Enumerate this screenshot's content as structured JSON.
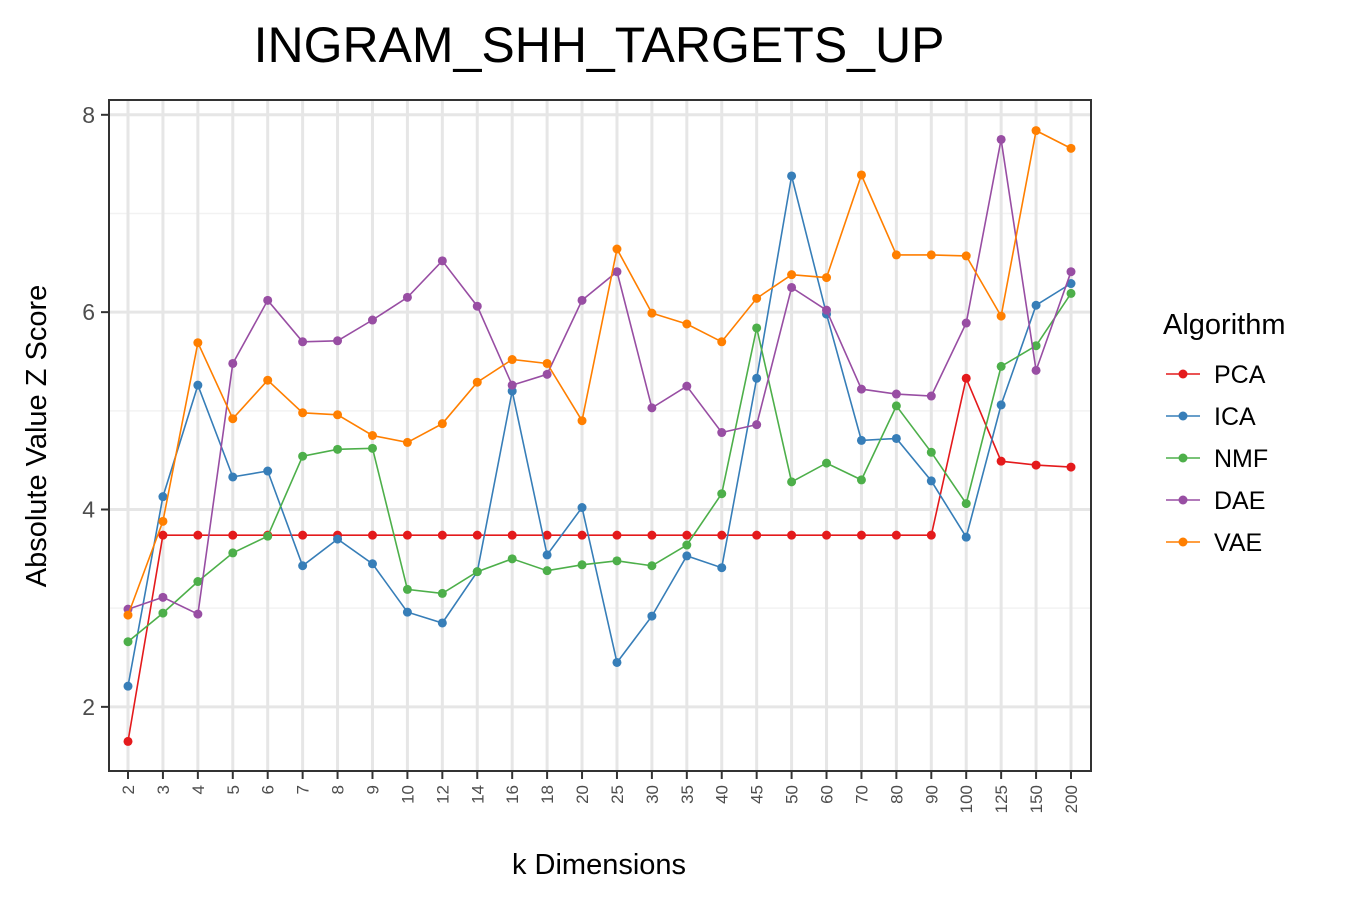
{
  "chart_data": {
    "type": "line",
    "title": "INGRAM_SHH_TARGETS_UP",
    "xlabel": "k Dimensions",
    "ylabel": "Absolute Value Z Score",
    "categories": [
      "2",
      "3",
      "4",
      "5",
      "6",
      "7",
      "8",
      "9",
      "10",
      "12",
      "14",
      "16",
      "18",
      "20",
      "25",
      "30",
      "35",
      "40",
      "45",
      "50",
      "60",
      "70",
      "80",
      "90",
      "100",
      "125",
      "150",
      "200"
    ],
    "yticks": [
      "2",
      "4",
      "6",
      "8"
    ],
    "ylim": [
      1.35,
      8.15
    ],
    "grid": true,
    "legend_title": "Algorithm",
    "legend_position": "right",
    "series": [
      {
        "name": "PCA",
        "color": "#E41A1C",
        "values": [
          1.65,
          3.74,
          3.74,
          3.74,
          3.74,
          3.74,
          3.74,
          3.74,
          3.74,
          3.74,
          3.74,
          3.74,
          3.74,
          3.74,
          3.74,
          3.74,
          3.74,
          3.74,
          3.74,
          3.74,
          3.74,
          3.74,
          3.74,
          3.74,
          5.33,
          4.49,
          4.45,
          4.43
        ]
      },
      {
        "name": "ICA",
        "color": "#377EB8",
        "values": [
          2.21,
          4.13,
          5.26,
          4.33,
          4.39,
          3.43,
          3.7,
          3.45,
          2.96,
          2.85,
          3.37,
          5.2,
          3.54,
          4.02,
          2.45,
          2.92,
          3.53,
          3.41,
          5.33,
          7.38,
          5.98,
          4.7,
          4.72,
          4.29,
          3.72,
          5.06,
          6.07,
          6.29
        ]
      },
      {
        "name": "NMF",
        "color": "#4DAF4A",
        "values": [
          2.66,
          2.95,
          3.27,
          3.56,
          3.73,
          4.54,
          4.61,
          4.62,
          3.19,
          3.15,
          3.37,
          3.5,
          3.38,
          3.44,
          3.48,
          3.43,
          3.64,
          4.16,
          5.84,
          4.28,
          4.47,
          4.3,
          5.05,
          4.58,
          4.06,
          5.45,
          5.66,
          6.19
        ]
      },
      {
        "name": "DAE",
        "color": "#984EA3",
        "values": [
          2.99,
          3.11,
          2.94,
          5.48,
          6.12,
          5.7,
          5.71,
          5.92,
          6.15,
          6.52,
          6.06,
          5.26,
          5.37,
          6.12,
          6.41,
          5.03,
          5.25,
          4.78,
          4.86,
          6.25,
          6.02,
          5.22,
          5.17,
          5.15,
          5.89,
          7.75,
          5.41,
          6.41
        ]
      },
      {
        "name": "VAE",
        "color": "#FF7F00",
        "values": [
          2.93,
          3.88,
          5.69,
          4.92,
          5.31,
          4.98,
          4.96,
          4.75,
          4.68,
          4.87,
          5.29,
          5.52,
          5.48,
          4.9,
          6.64,
          5.99,
          5.88,
          5.7,
          6.14,
          6.38,
          6.35,
          7.39,
          6.58,
          6.58,
          6.57,
          5.96,
          7.84,
          7.66
        ]
      }
    ]
  }
}
